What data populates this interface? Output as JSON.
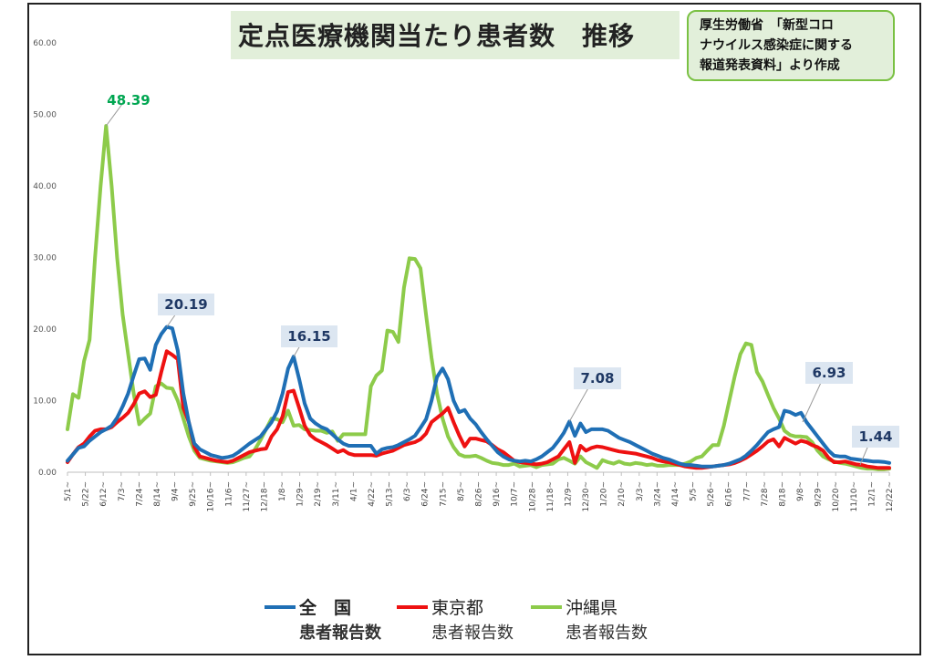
{
  "chart_data": {
    "type": "line",
    "title": "定点医療機関当たり患者数　推移",
    "source_note": "厚生労働省　「新型コロ\nナウイルス感染症に関する\n報道発表資料」より作成",
    "ylim": [
      0,
      60
    ],
    "y_ticks": [
      "0.00",
      "10.00",
      "20.00",
      "30.00",
      "40.00",
      "50.00",
      "60.00"
    ],
    "y_tick_values": [
      0,
      10,
      20,
      30,
      40,
      50,
      60
    ],
    "x_tick_labels": [
      "5/1~",
      "5/22~",
      "6/12~",
      "7/3~",
      "7/24~",
      "8/14~",
      "9/4~",
      "9/25~",
      "10/16~",
      "11/6~",
      "11/27~",
      "12/18~",
      "1/8~",
      "1/29~",
      "2/19~",
      "3/11~",
      "4/1~",
      "4/22~",
      "5/13~",
      "6/3~",
      "6/24~",
      "7/15~",
      "8/5~",
      "8/26~",
      "9/16~",
      "10/7~",
      "10/28~",
      "11/18~",
      "12/9~",
      "12/30~",
      "1/20~",
      "2/10~",
      "3/3~",
      "3/24~",
      "4/14~",
      "5/5~",
      "5/26~",
      "6/16~",
      "7/7~",
      "7/28~",
      "8/18~",
      "9/8~",
      "9/29~",
      "10/20~",
      "11/10~",
      "12/1~",
      "12/22~"
    ],
    "grid": false,
    "legend_position": "bottom",
    "series": [
      {
        "name": "全　国",
        "sub": "患者報告数",
        "color": "#1f6fb5",
        "values": [
          1.6,
          2.5,
          3.4,
          3.6,
          4.4,
          5.0,
          5.6,
          6.0,
          6.5,
          7.6,
          9.2,
          11.0,
          13.5,
          15.8,
          15.9,
          14.3,
          17.8,
          19.3,
          20.3,
          20.1,
          17.0,
          11.0,
          7.0,
          4.0,
          3.2,
          2.8,
          2.4,
          2.2,
          2.0,
          2.1,
          2.3,
          2.8,
          3.4,
          4.0,
          4.5,
          5.0,
          6.0,
          7.0,
          8.5,
          11.0,
          14.5,
          16.15,
          13.0,
          9.6,
          7.5,
          6.8,
          6.3,
          6.0,
          5.3,
          4.6,
          4.0,
          3.7,
          3.7,
          3.7,
          3.7,
          3.7,
          2.6,
          3.2,
          3.4,
          3.5,
          3.8,
          4.2,
          4.6,
          5.1,
          6.2,
          7.4,
          10.0,
          13.3,
          14.5,
          13.0,
          10.0,
          8.4,
          8.7,
          7.5,
          6.7,
          5.6,
          4.6,
          3.7,
          2.8,
          2.2,
          1.8,
          1.6,
          1.5,
          1.6,
          1.5,
          1.8,
          2.2,
          2.8,
          3.4,
          4.4,
          5.5,
          7.08,
          5.1,
          6.8,
          5.6,
          6.0,
          6.0,
          6.0,
          5.8,
          5.3,
          4.8,
          4.5,
          4.2,
          3.8,
          3.4,
          3.0,
          2.6,
          2.3,
          2.0,
          1.8,
          1.5,
          1.2,
          1.0,
          1.0,
          0.9,
          0.8,
          0.8,
          0.8,
          0.9,
          1.0,
          1.2,
          1.5,
          1.8,
          2.3,
          3.0,
          3.8,
          4.7,
          5.6,
          6.0,
          6.3,
          8.6,
          8.4,
          8.0,
          8.3,
          7.0,
          6.0,
          5.0,
          4.0,
          3.0,
          2.3,
          2.2,
          2.2,
          1.9,
          1.8,
          1.7,
          1.6,
          1.5,
          1.5,
          1.44,
          1.3
        ]
      },
      {
        "name": "東京都",
        "sub": "患者報告数",
        "color": "#ee1111",
        "values": [
          1.4,
          2.5,
          3.5,
          4.0,
          5.0,
          5.8,
          6.0,
          6.0,
          6.3,
          7.0,
          7.6,
          8.3,
          9.5,
          11.0,
          11.3,
          10.5,
          10.8,
          14.0,
          16.9,
          16.4,
          15.8,
          9.0,
          7.0,
          3.5,
          2.2,
          2.0,
          1.8,
          1.6,
          1.5,
          1.4,
          1.6,
          2.0,
          2.4,
          2.8,
          3.0,
          3.2,
          3.3,
          5.0,
          6.0,
          7.8,
          11.2,
          11.4,
          9.0,
          6.5,
          5.2,
          4.6,
          4.2,
          3.8,
          3.3,
          2.8,
          3.1,
          2.6,
          2.4,
          2.4,
          2.4,
          2.4,
          2.3,
          2.6,
          2.8,
          3.0,
          3.4,
          3.8,
          4.0,
          4.2,
          4.6,
          5.4,
          7.0,
          7.6,
          8.2,
          9.0,
          7.0,
          5.2,
          3.6,
          4.7,
          4.7,
          4.5,
          4.3,
          3.8,
          3.2,
          2.8,
          2.2,
          1.6,
          1.4,
          1.3,
          1.2,
          1.1,
          1.2,
          1.4,
          1.8,
          2.2,
          3.2,
          4.2,
          1.3,
          3.7,
          3.0,
          3.4,
          3.6,
          3.5,
          3.3,
          3.1,
          2.9,
          2.8,
          2.7,
          2.6,
          2.4,
          2.2,
          2.0,
          1.7,
          1.5,
          1.4,
          1.2,
          1.0,
          0.8,
          0.7,
          0.6,
          0.6,
          0.7,
          0.8,
          0.9,
          1.0,
          1.1,
          1.3,
          1.6,
          2.0,
          2.5,
          3.0,
          3.6,
          4.3,
          4.6,
          3.6,
          4.8,
          4.4,
          4.0,
          4.4,
          4.2,
          3.8,
          3.5,
          3.0,
          2.0,
          1.4,
          1.4,
          1.5,
          1.3,
          1.1,
          1.0,
          0.8,
          0.7,
          0.6,
          0.6,
          0.6
        ]
      },
      {
        "name": "沖縄県",
        "sub": "患者報告数",
        "color": "#8dcb4a",
        "values": [
          6.0,
          10.9,
          10.4,
          15.5,
          18.5,
          30.0,
          40.0,
          48.39,
          40.0,
          30.0,
          22.0,
          16.5,
          11.0,
          6.7,
          7.5,
          8.2,
          12.0,
          12.4,
          11.8,
          11.7,
          10.0,
          7.5,
          5.0,
          3.0,
          2.0,
          1.8,
          1.6,
          1.5,
          1.4,
          1.3,
          1.4,
          1.7,
          2.0,
          2.2,
          3.2,
          4.5,
          6.0,
          7.5,
          7.4,
          7.0,
          8.6,
          6.5,
          6.6,
          6.0,
          5.9,
          5.8,
          5.8,
          5.5,
          5.7,
          4.4,
          5.3,
          5.3,
          5.3,
          5.3,
          5.3,
          12.0,
          13.5,
          14.2,
          19.8,
          19.6,
          18.2,
          25.8,
          29.9,
          29.8,
          28.5,
          22.0,
          16.0,
          11.0,
          7.5,
          5.0,
          3.5,
          2.5,
          2.2,
          2.2,
          2.3,
          2.0,
          1.6,
          1.3,
          1.2,
          1.0,
          1.0,
          1.2,
          0.8,
          0.9,
          1.0,
          0.7,
          1.0,
          1.1,
          1.2,
          1.8,
          2.0,
          1.6,
          1.2,
          2.2,
          1.4,
          1.0,
          0.6,
          1.7,
          1.4,
          1.2,
          1.5,
          1.2,
          1.1,
          1.3,
          1.2,
          1.0,
          1.1,
          0.9,
          0.9,
          1.0,
          1.0,
          1.0,
          1.2,
          1.5,
          2.0,
          2.2,
          3.0,
          3.8,
          3.8,
          6.5,
          10.0,
          13.5,
          16.5,
          18.0,
          17.8,
          14.0,
          12.7,
          10.8,
          9.0,
          7.5,
          5.8,
          5.2,
          5.0,
          5.0,
          4.9,
          4.2,
          3.0,
          2.2,
          1.8,
          1.5,
          1.3,
          1.2,
          1.0,
          0.8,
          0.6,
          0.5,
          0.5,
          0.4,
          0.4,
          0.5
        ]
      }
    ],
    "annotations": [
      {
        "label": "48.39",
        "series": 2,
        "color": "#00a651"
      },
      {
        "label": "20.19",
        "series": 0,
        "color": "#1f3864"
      },
      {
        "label": "16.15",
        "series": 0,
        "color": "#1f3864"
      },
      {
        "label": "7.08",
        "series": 0,
        "color": "#1f3864"
      },
      {
        "label": "6.93",
        "series": 0,
        "color": "#1f3864"
      },
      {
        "label": "1.44",
        "series": 0,
        "color": "#1f3864"
      }
    ]
  }
}
